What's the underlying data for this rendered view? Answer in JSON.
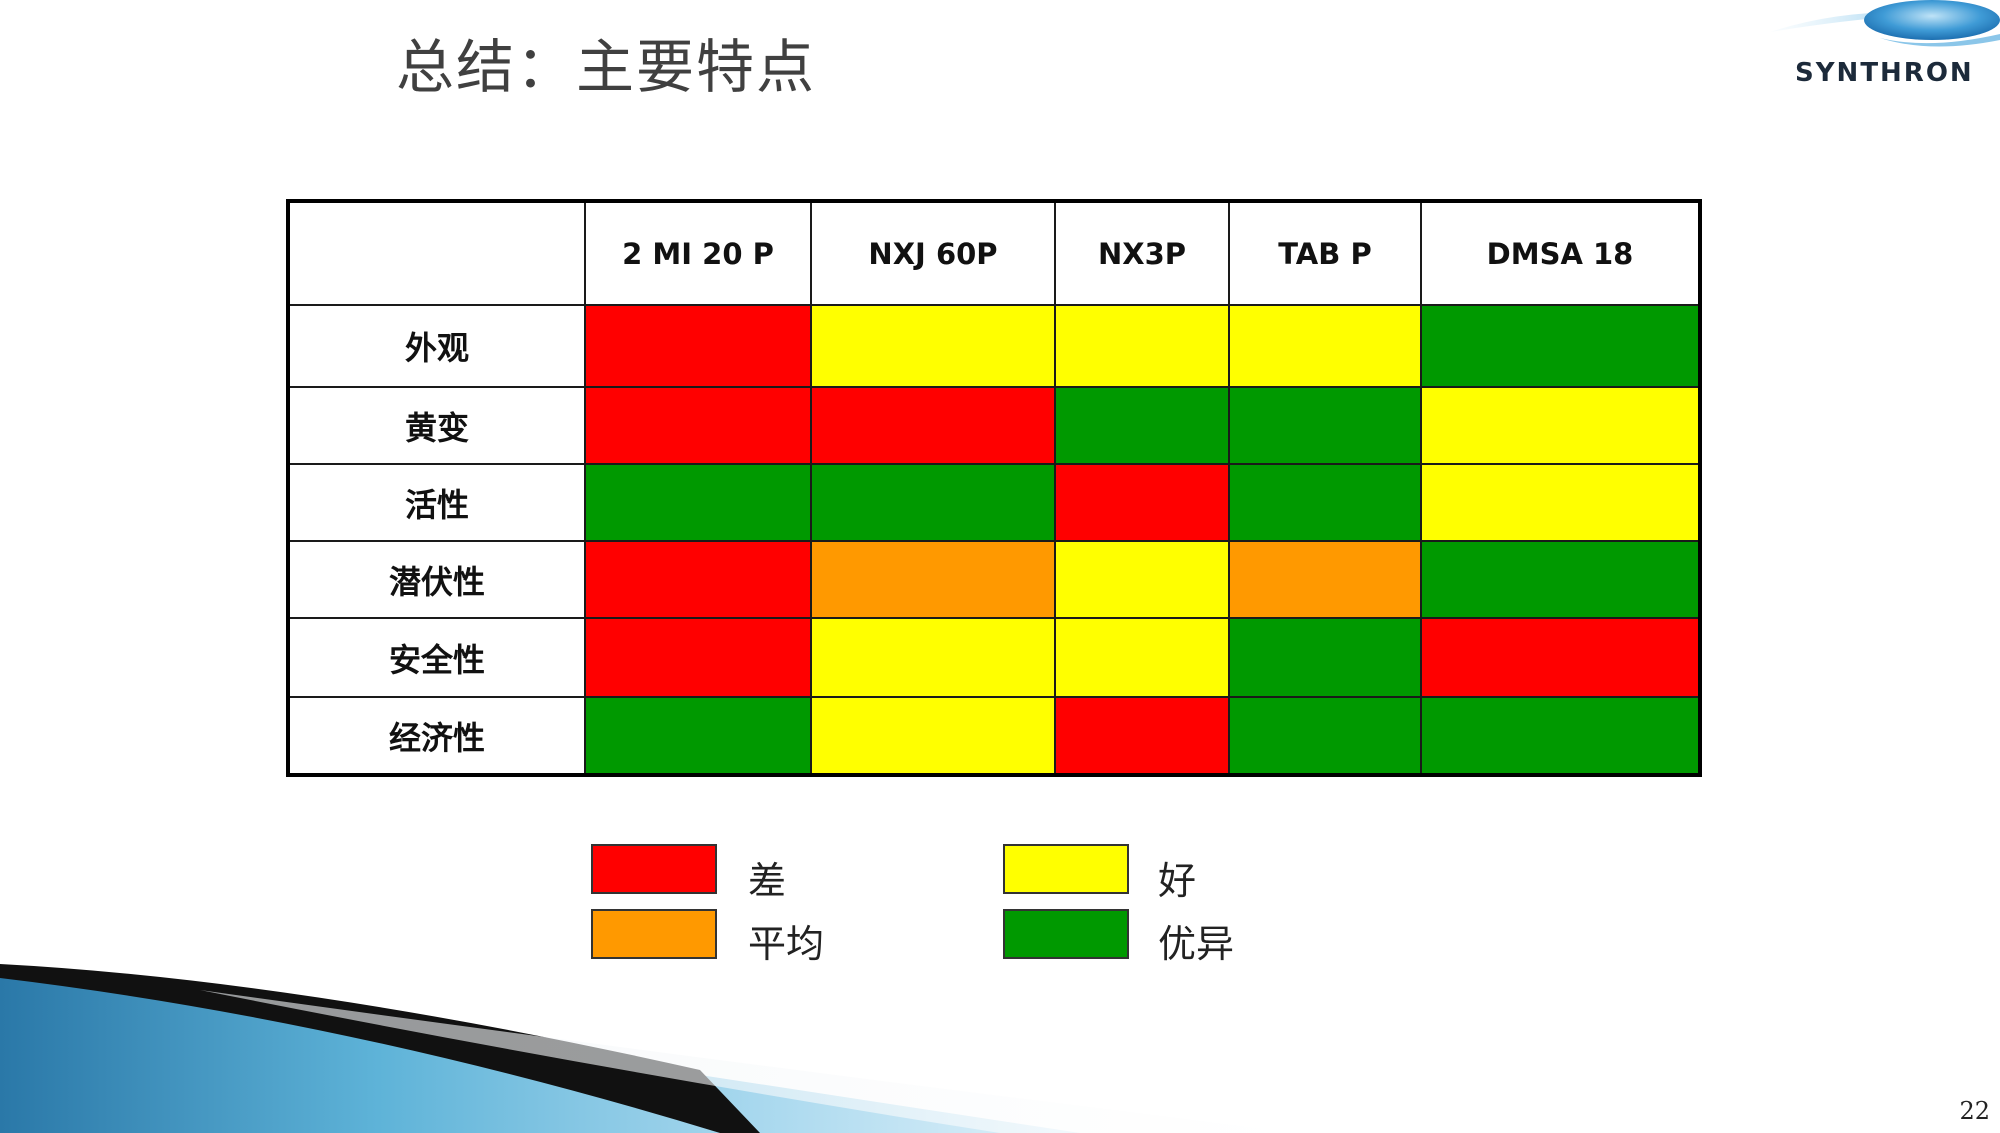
{
  "slide": {
    "title": "总结：主要特点",
    "page_number": "22"
  },
  "logo": {
    "text": "SYNTHRON",
    "icon": "swoosh-globe-logo"
  },
  "colors": {
    "poor": "#ff0000",
    "average": "#ff9900",
    "good": "#ffff00",
    "excellent": "#009900"
  },
  "table": {
    "columns": [
      "",
      "2 MI 20 P",
      "NXJ 60P",
      "NX3P",
      "TAB P",
      "DMSA 18"
    ],
    "rows": [
      {
        "label": "外观",
        "ratings": [
          "poor",
          "good",
          "good",
          "good",
          "excellent"
        ]
      },
      {
        "label": "黄变",
        "ratings": [
          "poor",
          "poor",
          "excellent",
          "excellent",
          "good"
        ]
      },
      {
        "label": "活性",
        "ratings": [
          "excellent",
          "excellent",
          "poor",
          "excellent",
          "good"
        ]
      },
      {
        "label": "潜伏性",
        "ratings": [
          "poor",
          "average",
          "good",
          "average",
          "excellent"
        ]
      },
      {
        "label": "安全性",
        "ratings": [
          "poor",
          "good",
          "good",
          "excellent",
          "poor"
        ]
      },
      {
        "label": "经济性",
        "ratings": [
          "excellent",
          "good",
          "poor",
          "excellent",
          "excellent"
        ]
      }
    ]
  },
  "legend": {
    "poor": "差",
    "average": "平均",
    "good": "好",
    "excellent": "优异"
  }
}
